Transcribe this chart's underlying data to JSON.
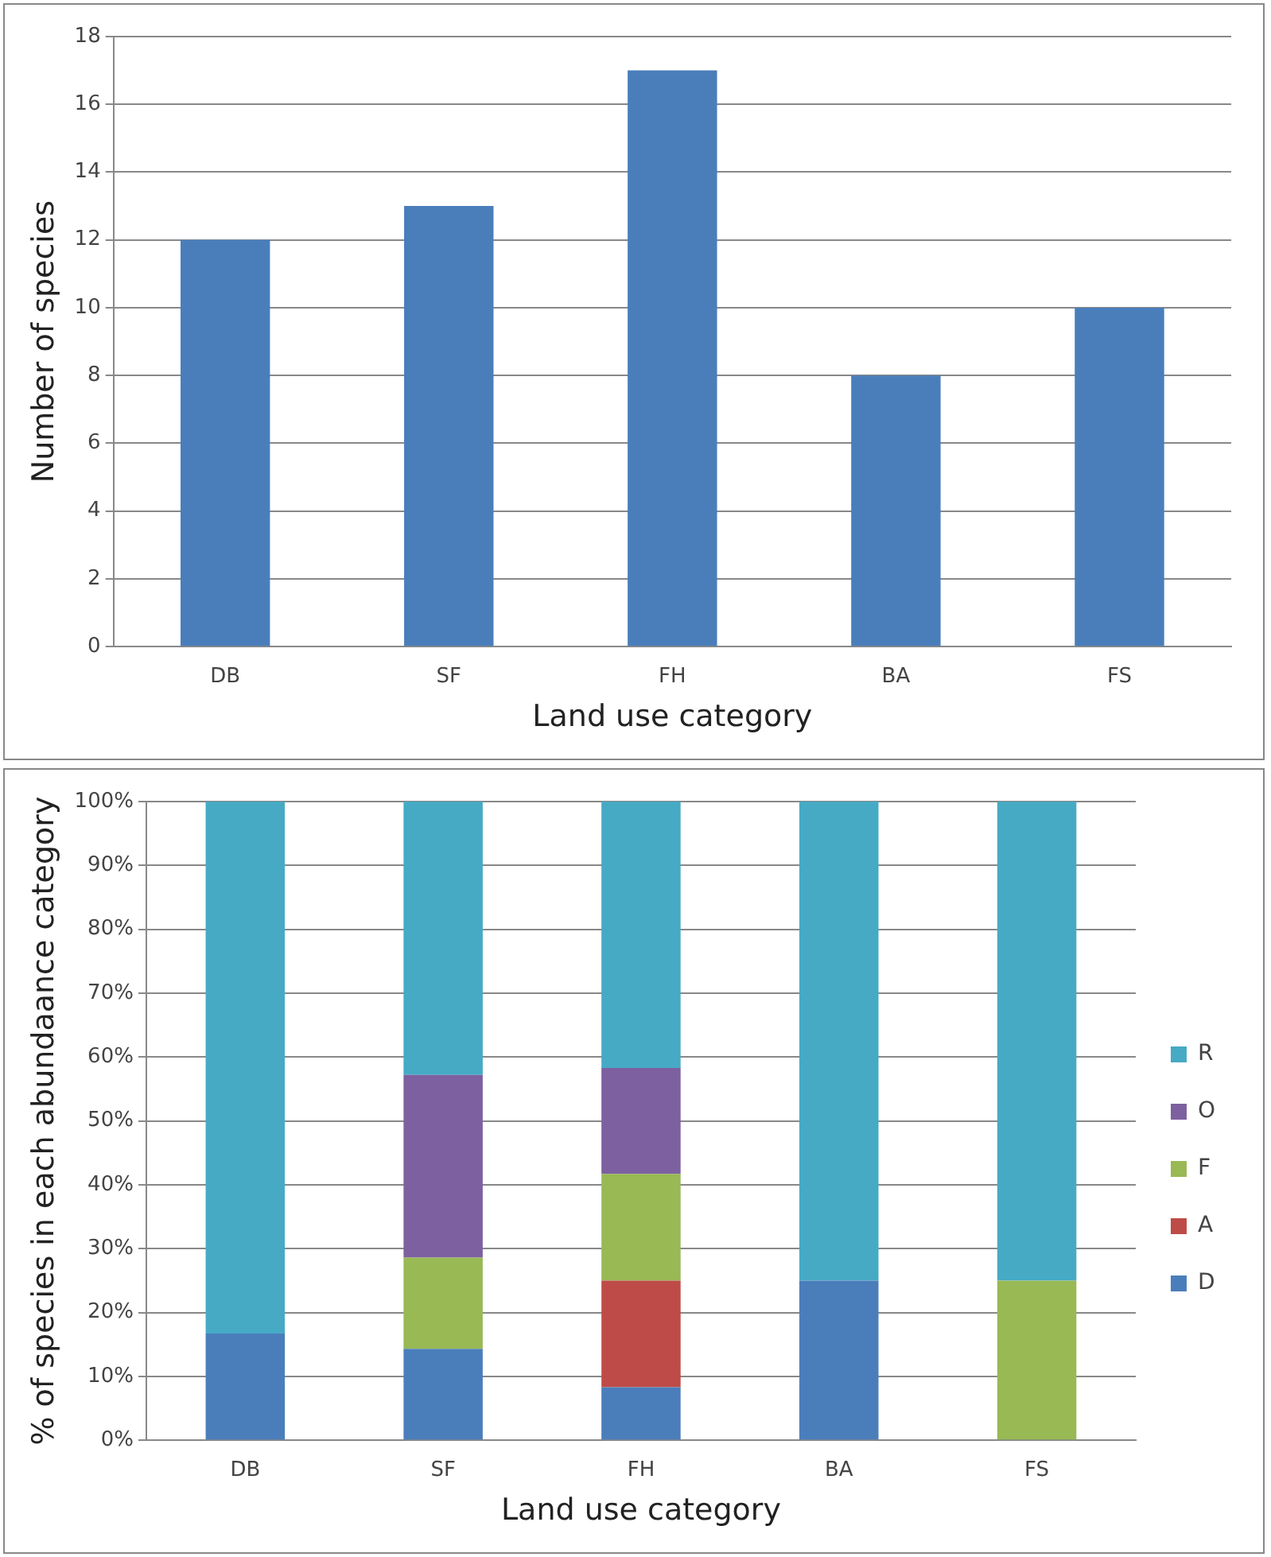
{
  "chart_data": [
    {
      "type": "bar",
      "xlabel": "Land use category",
      "ylabel": "Number of species",
      "categories": [
        "DB",
        "SF",
        "FH",
        "BA",
        "FS"
      ],
      "values": [
        12,
        13,
        17,
        8,
        10
      ],
      "color": "#4a7ebb",
      "ylim": [
        0,
        18
      ],
      "yticks": [
        0,
        2,
        4,
        6,
        8,
        10,
        12,
        14,
        16,
        18
      ],
      "grid": "y"
    },
    {
      "type": "bar",
      "stacked": true,
      "xlabel": "Land use category",
      "ylabel": "% of species in each abundaance category",
      "categories": [
        "DB",
        "SF",
        "FH",
        "BA",
        "FS"
      ],
      "legend": "right",
      "grid": "y",
      "ylim": [
        0,
        100
      ],
      "yticks": [
        {
          "value": 0,
          "label": "0%"
        },
        {
          "value": 10,
          "label": "10%"
        },
        {
          "value": 20,
          "label": "20%"
        },
        {
          "value": 30,
          "label": "30%"
        },
        {
          "value": 40,
          "label": "40%"
        },
        {
          "value": 50,
          "label": "50%"
        },
        {
          "value": 60,
          "label": "60%"
        },
        {
          "value": 70,
          "label": "70%"
        },
        {
          "value": 80,
          "label": "80%"
        },
        {
          "value": 90,
          "label": "90%"
        },
        {
          "value": 100,
          "label": "100%"
        }
      ],
      "series": [
        {
          "name": "D",
          "color": "#4a7ebb",
          "values": [
            16.7,
            14.3,
            8.3,
            25,
            0
          ]
        },
        {
          "name": "A",
          "color": "#be4b48",
          "values": [
            0,
            0,
            16.7,
            0,
            0
          ]
        },
        {
          "name": "F",
          "color": "#98b954",
          "values": [
            0,
            14.3,
            16.7,
            0,
            25
          ]
        },
        {
          "name": "O",
          "color": "#7d60a0",
          "values": [
            0,
            28.6,
            16.6,
            0,
            0
          ]
        },
        {
          "name": "R",
          "color": "#46aac5",
          "values": [
            83.3,
            42.8,
            41.7,
            75,
            75
          ]
        }
      ]
    }
  ]
}
